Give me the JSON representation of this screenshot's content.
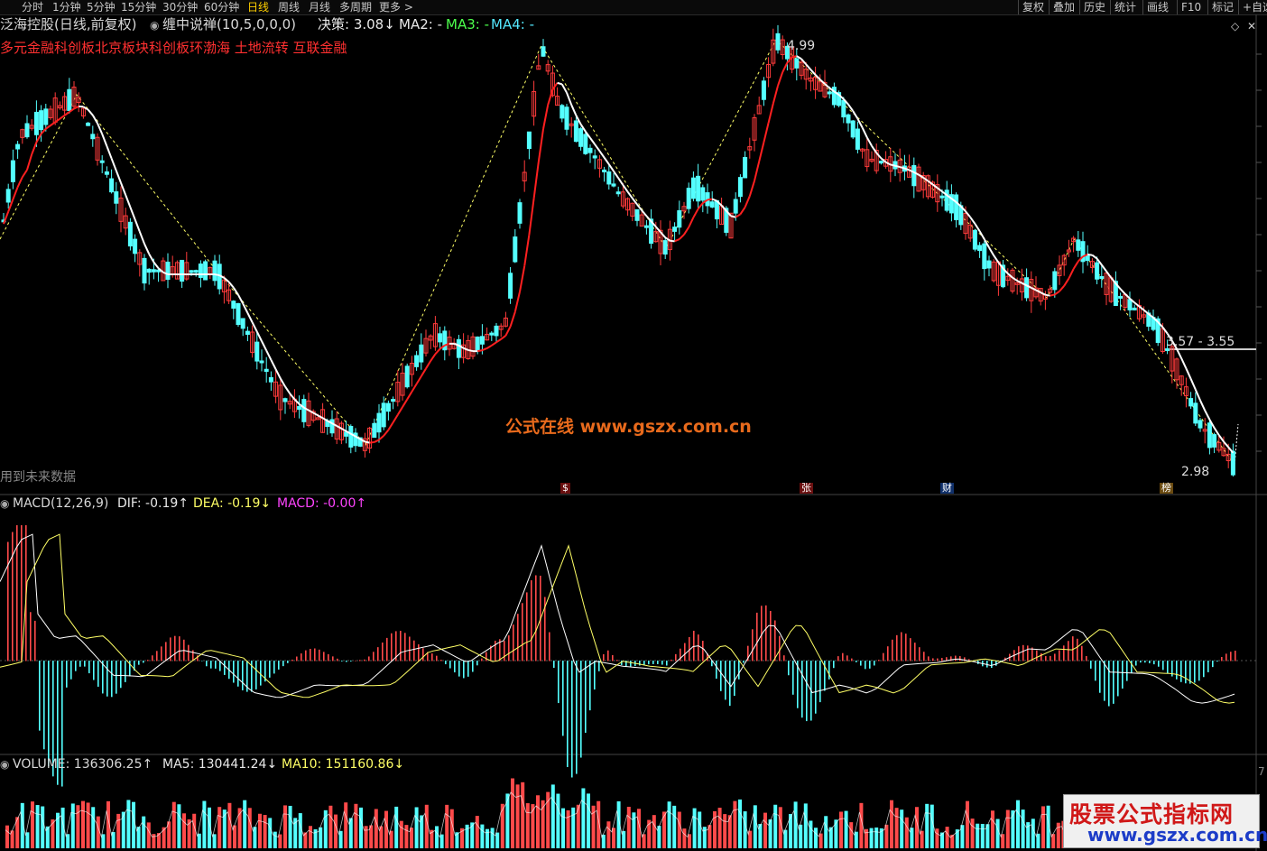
{
  "toolbar": {
    "timeframes": [
      "分时",
      "1分钟",
      "5分钟",
      "15分钟",
      "30分钟",
      "60分钟",
      "日线",
      "周线",
      "月线",
      "多周期",
      "更多 >"
    ],
    "active_index": 6,
    "right_buttons": [
      "复权",
      "叠加",
      "历史",
      "统计",
      "画线",
      "F10",
      "标记",
      "+自选"
    ]
  },
  "header": {
    "stock": "泛海控股(日线,前复权)",
    "indicator": "缠中说禅(10,5,0,0,0)",
    "decision": "决策: 3.08↓",
    "ma2": "MA2: -",
    "ma3": "MA3: -",
    "ma4": "MA4: -",
    "concepts": "多元金融科创板北京板块科创板环渤海 土地流转 互联金融"
  },
  "annotations": {
    "high": "4.99",
    "low": "2.98",
    "level": "3.57 - 3.55",
    "future_note": "用到未来数据"
  },
  "event_marks": [
    "$",
    "张",
    "财",
    "榜"
  ],
  "watermark": {
    "center": "公式在线  www.gszx.com.cn",
    "badge_title": "股票公式指标网",
    "badge_url": "www.gszx.com.cn"
  },
  "macd": {
    "title": "MACD(12,26,9)",
    "dif": "DIF: -0.19↑",
    "dea": "DEA: -0.19↓",
    "macd": "MACD: -0.00↑"
  },
  "volume": {
    "title": "VOLUME: 136306.25↑",
    "ma5": "MA5: 130441.24↓",
    "ma10": "MA10: 151160.86↓",
    "axis_tick": "7"
  },
  "colors": {
    "up": "#ff3b3b",
    "down": "#54ffff",
    "ma_white": "#ffffff",
    "ma_red": "#ff2020",
    "dif": "#ffffff",
    "dea": "#ffff66",
    "macd_label": "#ff44ff",
    "zigzag": "#ffff66"
  }
}
